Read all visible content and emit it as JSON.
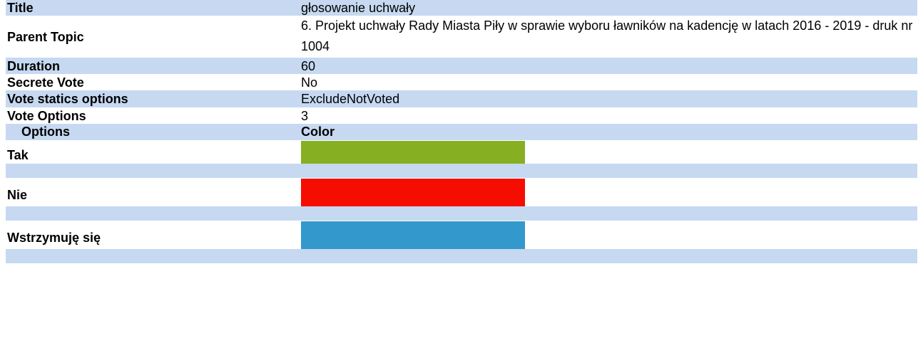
{
  "fields": [
    {
      "label": "Title",
      "value": "głosowanie uchwały"
    },
    {
      "label": "Parent Topic",
      "value": "6. Projekt uchwały Rady Miasta Piły w sprawie wyboru ławników na kadencję w latach 2016 - 2019 - druk nr 1004"
    },
    {
      "label": "Duration",
      "value": "60"
    },
    {
      "label": "Secrete Vote",
      "value": "No"
    },
    {
      "label": "Vote statics options",
      "value": "ExcludeNotVoted"
    },
    {
      "label": "Vote Options",
      "value": "3"
    }
  ],
  "options_table": {
    "headers": [
      "Options",
      "Color"
    ],
    "rows": [
      {
        "name": "Tak",
        "color": "#86b022"
      },
      {
        "name": "Nie",
        "color": "#f50d00"
      },
      {
        "name": "Wstrzymuję się",
        "color": "#3399cc"
      }
    ]
  }
}
